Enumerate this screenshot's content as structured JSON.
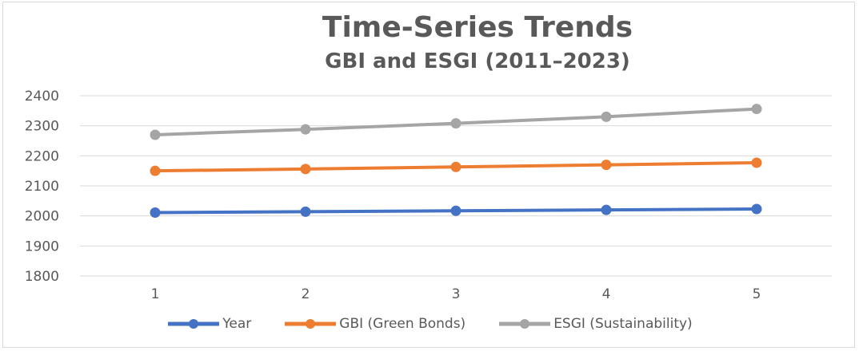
{
  "chart_data": {
    "type": "line",
    "title": "Time-Series Trends",
    "subtitle": "GBI and ESGI (2011–2023)",
    "categories": [
      "1",
      "2",
      "3",
      "4",
      "5"
    ],
    "ylim": [
      1800,
      2400
    ],
    "yticks": [
      1800,
      1900,
      2000,
      2100,
      2200,
      2300,
      2400
    ],
    "grid": true,
    "legend_position": "bottom",
    "series": [
      {
        "name": "Year",
        "color": "#4472c4",
        "values": [
          2011,
          2014,
          2017,
          2020,
          2023
        ]
      },
      {
        "name": "GBI (Green Bonds)",
        "color": "#ed7d31",
        "values": [
          2150,
          2156,
          2163,
          2170,
          2177
        ]
      },
      {
        "name": "ESGI (Sustainability)",
        "color": "#a5a5a5",
        "values": [
          2270,
          2288,
          2308,
          2330,
          2356
        ]
      }
    ]
  }
}
